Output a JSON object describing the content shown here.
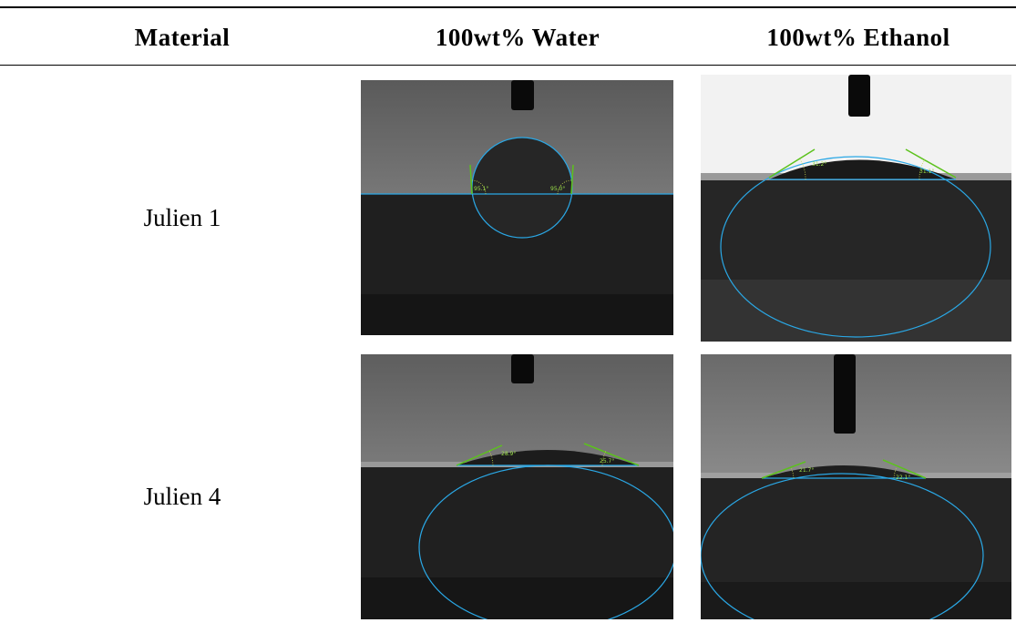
{
  "table": {
    "header": [
      "Material",
      "100wt% Water",
      "100wt% Ethanol"
    ],
    "rows": [
      {
        "material": "Julien 1",
        "cells": [
          {
            "angles": [
              "95.1°",
              "95.0°"
            ]
          },
          {
            "angles": [
              "31.2°",
              "31.1°"
            ]
          }
        ]
      },
      {
        "material": "Julien 4",
        "cells": [
          {
            "angles": [
              "28.9°",
              "25.7°"
            ]
          },
          {
            "angles": [
              "21.7°",
              "22.1°"
            ]
          }
        ]
      }
    ]
  }
}
